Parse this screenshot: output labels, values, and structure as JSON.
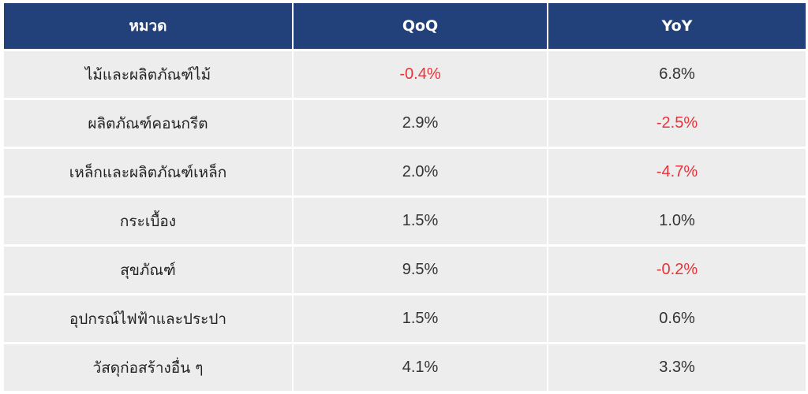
{
  "table": {
    "headers": [
      "หมวด",
      "QoQ",
      "YoY"
    ],
    "rows": [
      {
        "category": "ไม้และผลิตภัณฑ์ไม้",
        "qoq": "-0.4%",
        "yoy": "6.8%",
        "qoq_negative": true,
        "yoy_negative": false
      },
      {
        "category": "ผลิตภัณฑ์คอนกรีต",
        "qoq": "2.9%",
        "yoy": "-2.5%",
        "qoq_negative": false,
        "yoy_negative": true
      },
      {
        "category": "เหล็กและผลิตภัณฑ์เหล็ก",
        "qoq": "2.0%",
        "yoy": "-4.7%",
        "qoq_negative": false,
        "yoy_negative": true
      },
      {
        "category": "กระเบื้อง",
        "qoq": "1.5%",
        "yoy": "1.0%",
        "qoq_negative": false,
        "yoy_negative": false
      },
      {
        "category": "สุขภัณฑ์",
        "qoq": "9.5%",
        "yoy": "-0.2%",
        "qoq_negative": false,
        "yoy_negative": true
      },
      {
        "category": "อุปกรณ์ไฟฟ้าและประปา",
        "qoq": "1.5%",
        "yoy": "0.6%",
        "qoq_negative": false,
        "yoy_negative": false
      },
      {
        "category": "วัสดุก่อสร้างอื่น ๆ",
        "qoq": "4.1%",
        "yoy": "3.3%",
        "qoq_negative": false,
        "yoy_negative": false
      }
    ]
  },
  "colors": {
    "header_bg": "#22407a",
    "header_text": "#ffffff",
    "row_bg": "#ededed",
    "negative_text": "#e8333a",
    "positive_text": "#333333"
  }
}
